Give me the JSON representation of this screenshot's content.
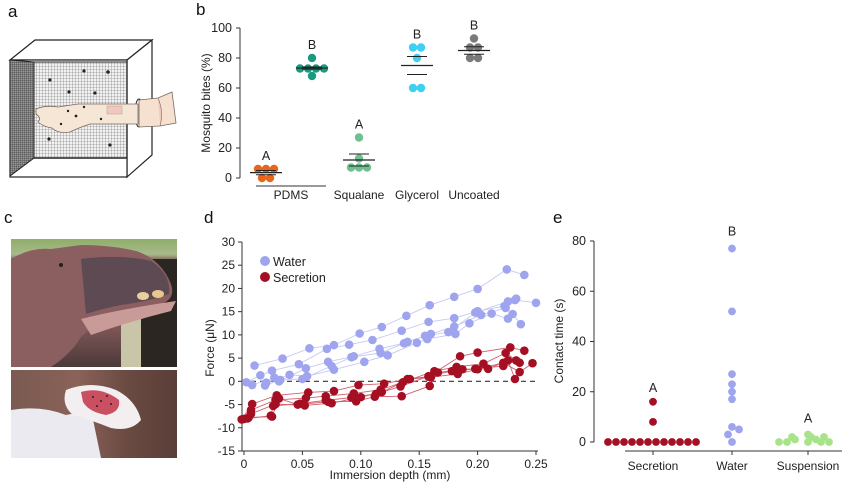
{
  "panels": {
    "a": {
      "letter": "a",
      "description": "Mosquito cage with arm inserted"
    },
    "b": {
      "letter": "b"
    },
    "c": {
      "letter": "c",
      "photos": [
        "hippopotamus-head",
        "secretion-swab"
      ]
    },
    "d": {
      "letter": "d"
    },
    "e": {
      "letter": "e"
    }
  },
  "colors": {
    "pdms": "#e8651a",
    "squalane_b": "#1a9a80",
    "squalane": "#6fbf8f",
    "glycerol": "#3fcff0",
    "uncoated": "#7a7a7a",
    "water": "#9fa4ef",
    "secretion": "#a50f23",
    "suspension": "#a8e38a"
  },
  "chart_data": [
    {
      "id": "b",
      "type": "scatter",
      "title": "",
      "xlabel": "",
      "ylabel": "Mosquito bites (%)",
      "ylim": [
        0,
        100
      ],
      "yticks": [
        0,
        20,
        40,
        60,
        80,
        100
      ],
      "categories": [
        "PDMS",
        "Squalane",
        "Glycerol",
        "Uncoated"
      ],
      "underline_category": "PDMS",
      "groups": [
        {
          "category": "PDMS",
          "pos": 0,
          "letter": "A",
          "color": "#e8651a",
          "values": [
            0,
            0,
            6,
            6,
            6
          ],
          "mean": 3.6,
          "sem_upper": 5.0,
          "sem_lower": 2.2
        },
        {
          "category": "PDMS",
          "pos": 0.55,
          "letter": "B",
          "color": "#1a9a80",
          "values": [
            68,
            73,
            73,
            73,
            73,
            80
          ],
          "mean": 73.3,
          "sem_upper": 74.0,
          "sem_lower": 72.6
        },
        {
          "category": "Squalane",
          "pos": 1.25,
          "letter": "A",
          "color": "#6fbf8f",
          "values": [
            7,
            7,
            7,
            13,
            27
          ],
          "mean": 12.0,
          "sem_upper": 16.0,
          "sem_lower": 8.0
        },
        {
          "category": "Glycerol",
          "pos": 2.2,
          "letter": "B",
          "color": "#3fcff0",
          "values": [
            60,
            60,
            80,
            87,
            87
          ],
          "mean": 75.0,
          "sem_upper": 81.0,
          "sem_lower": 69.0
        },
        {
          "category": "Uncoated",
          "pos": 3.05,
          "letter": "B",
          "color": "#7a7a7a",
          "values": [
            80,
            80,
            87,
            87,
            93
          ],
          "mean": 85.0,
          "sem_upper": 87.5,
          "sem_lower": 82.5
        }
      ]
    },
    {
      "id": "d",
      "type": "line",
      "title": "",
      "xlabel": "Immersion depth (mm)",
      "ylabel": "Force (μN)",
      "xlim": [
        0,
        0.25
      ],
      "ylim": [
        -15,
        30
      ],
      "xticks": [
        0,
        0.05,
        0.1,
        0.15,
        0.2,
        0.25
      ],
      "xtick_labels": [
        "0",
        "0.05",
        "0.10",
        "0.15",
        "0.20",
        "0.25"
      ],
      "yticks": [
        -15,
        -10,
        -5,
        0,
        5,
        10,
        15,
        20,
        25,
        30
      ],
      "reference_line": 0,
      "legend": {
        "placement": "top-left",
        "entries": [
          "Water",
          "Secretion"
        ]
      },
      "series": [
        {
          "name": "Water",
          "group": "water",
          "points": [
            [
              0.009,
              3.4
            ],
            [
              0.033,
              4.9
            ],
            [
              0.056,
              7.1
            ],
            [
              0.077,
              7.8
            ],
            [
              0.099,
              10.3
            ],
            [
              0.118,
              11.7
            ],
            [
              0.139,
              14.1
            ],
            [
              0.159,
              16.4
            ],
            [
              0.18,
              18.2
            ],
            [
              0.2,
              19.9
            ],
            [
              0.225,
              24.1
            ],
            [
              0.24,
              22.9
            ]
          ]
        },
        {
          "name": "Water",
          "group": "water",
          "points": [
            [
              0.002,
              -0.2
            ],
            [
              0.014,
              1.3
            ],
            [
              0.024,
              2.3
            ],
            [
              0.047,
              3.7
            ],
            [
              0.071,
              7.0
            ],
            [
              0.09,
              7.9
            ],
            [
              0.11,
              8.9
            ],
            [
              0.135,
              10.9
            ],
            [
              0.158,
              12.8
            ],
            [
              0.18,
              13.6
            ],
            [
              0.2,
              15.1
            ],
            [
              0.223,
              16.2
            ],
            [
              0.232,
              17.5
            ],
            [
              0.25,
              16.9
            ]
          ]
        },
        {
          "name": "Water",
          "group": "water",
          "points": [
            [
              0.007,
              -0.8
            ],
            [
              0.026,
              0.8
            ],
            [
              0.03,
              0.0
            ],
            [
              0.053,
              2.8
            ],
            [
              0.072,
              4.2
            ],
            [
              0.094,
              5.4
            ],
            [
              0.116,
              7.0
            ],
            [
              0.137,
              8.2
            ],
            [
              0.155,
              9.8
            ],
            [
              0.175,
              10.6
            ],
            [
              0.198,
              14.8
            ],
            [
              0.226,
              17.2
            ],
            [
              0.233,
              17.8
            ]
          ]
        },
        {
          "name": "Water",
          "group": "water",
          "points": [
            [
              0.018,
              -0.9
            ],
            [
              0.031,
              0.3
            ],
            [
              0.05,
              0.5
            ],
            [
              0.075,
              3.3
            ],
            [
              0.092,
              5.2
            ],
            [
              0.117,
              6.1
            ],
            [
              0.14,
              8.5
            ],
            [
              0.16,
              10.2
            ],
            [
              0.18,
              11.8
            ],
            [
              0.203,
              14.3
            ],
            [
              0.224,
              15.8
            ],
            [
              0.23,
              14.5
            ],
            [
              0.237,
              12.3
            ]
          ]
        },
        {
          "name": "Water",
          "group": "water",
          "points": [
            [
              0.019,
              -0.3
            ],
            [
              0.039,
              1.4
            ],
            [
              0.054,
              1.1
            ],
            [
              0.077,
              2.5
            ],
            [
              0.103,
              4.2
            ],
            [
              0.123,
              5.6
            ],
            [
              0.148,
              8.3
            ],
            [
              0.157,
              9.1
            ],
            [
              0.181,
              10.2
            ],
            [
              0.193,
              12.5
            ],
            [
              0.212,
              14.6
            ],
            [
              0.226,
              13.5
            ]
          ]
        },
        {
          "name": "Secretion",
          "group": "secretion",
          "points": [
            [
              -0.002,
              -8.2
            ],
            [
              0.007,
              -4.9
            ],
            [
              0.028,
              -3.0
            ],
            [
              0.055,
              -2.4
            ],
            [
              0.077,
              -2.1
            ],
            [
              0.098,
              -0.8
            ],
            [
              0.12,
              -0.5
            ],
            [
              0.14,
              0.5
            ],
            [
              0.158,
              1.0
            ],
            [
              0.185,
              5.4
            ],
            [
              0.2,
              6.2
            ],
            [
              0.228,
              7.3
            ],
            [
              0.24,
              6.6
            ]
          ]
        },
        {
          "name": "Secretion",
          "group": "secretion",
          "points": [
            [
              0.003,
              -8.0
            ],
            [
              0.006,
              -6.2
            ],
            [
              0.027,
              -4.0
            ],
            [
              0.053,
              -3.6
            ],
            [
              0.07,
              -3.2
            ],
            [
              0.094,
              -2.6
            ],
            [
              0.117,
              -1.8
            ],
            [
              0.136,
              -0.2
            ],
            [
              0.163,
              2.2
            ],
            [
              0.182,
              3.1
            ],
            [
              0.205,
              3.8
            ],
            [
              0.224,
              6.1
            ],
            [
              0.236,
              4.0
            ]
          ]
        },
        {
          "name": "Secretion",
          "group": "secretion",
          "points": [
            [
              0.0,
              -8.1
            ],
            [
              0.023,
              -7.4
            ],
            [
              0.025,
              -5.3
            ],
            [
              0.048,
              -4.8
            ],
            [
              0.07,
              -4.1
            ],
            [
              0.092,
              -3.5
            ],
            [
              0.113,
              -2.7
            ],
            [
              0.134,
              -1.1
            ],
            [
              0.158,
              1.1
            ],
            [
              0.178,
              2.2
            ],
            [
              0.198,
              2.7
            ],
            [
              0.222,
              3.3
            ],
            [
              0.233,
              4.5
            ]
          ]
        },
        {
          "name": "Secretion",
          "group": "secretion",
          "points": [
            [
              0.004,
              -7.8
            ],
            [
              0.024,
              -7.6
            ],
            [
              0.03,
              -3.7
            ],
            [
              0.046,
              -5.0
            ],
            [
              0.072,
              -4.4
            ],
            [
              0.096,
              -4.3
            ],
            [
              0.112,
              -3.3
            ],
            [
              0.135,
              -3.2
            ],
            [
              0.159,
              -1.0
            ],
            [
              0.166,
              1.9
            ],
            [
              0.187,
              2.6
            ],
            [
              0.209,
              2.7
            ],
            [
              0.226,
              4.5
            ],
            [
              0.232,
              0.5
            ]
          ]
        },
        {
          "name": "Secretion",
          "group": "secretion",
          "points": [
            [
              0.006,
              -7.0
            ],
            [
              0.027,
              -4.9
            ],
            [
              0.052,
              -5.2
            ],
            [
              0.075,
              -4.7
            ],
            [
              0.1,
              -3.4
            ],
            [
              0.118,
              -2.3
            ],
            [
              0.142,
              0.5
            ],
            [
              0.16,
              0.9
            ],
            [
              0.183,
              1.6
            ],
            [
              0.2,
              2.6
            ],
            [
              0.222,
              4.0
            ],
            [
              0.236,
              2.0
            ],
            [
              0.247,
              3.9
            ]
          ]
        }
      ]
    },
    {
      "id": "e",
      "type": "scatter",
      "title": "",
      "xlabel": "",
      "ylabel": "Contact time  (s)",
      "ylim": [
        0,
        80
      ],
      "yticks": [
        0,
        20,
        40,
        60,
        80
      ],
      "categories": [
        "Secretion",
        "Water",
        "Suspension"
      ],
      "groups": [
        {
          "category": "Secretion",
          "letter": "A",
          "color": "#a50f23",
          "values": [
            0,
            0,
            0,
            0,
            0,
            0,
            0,
            0,
            0,
            0,
            0,
            0,
            8,
            16
          ]
        },
        {
          "category": "Water",
          "letter": "B",
          "color": "#9fa4ef",
          "values": [
            0,
            3,
            5,
            6,
            17,
            20,
            23,
            27,
            52,
            77
          ]
        },
        {
          "category": "Suspension",
          "letter": "A",
          "color": "#a8e38a",
          "values": [
            0,
            0,
            0,
            0,
            0,
            1,
            1,
            2,
            2,
            2,
            3
          ]
        }
      ]
    }
  ]
}
